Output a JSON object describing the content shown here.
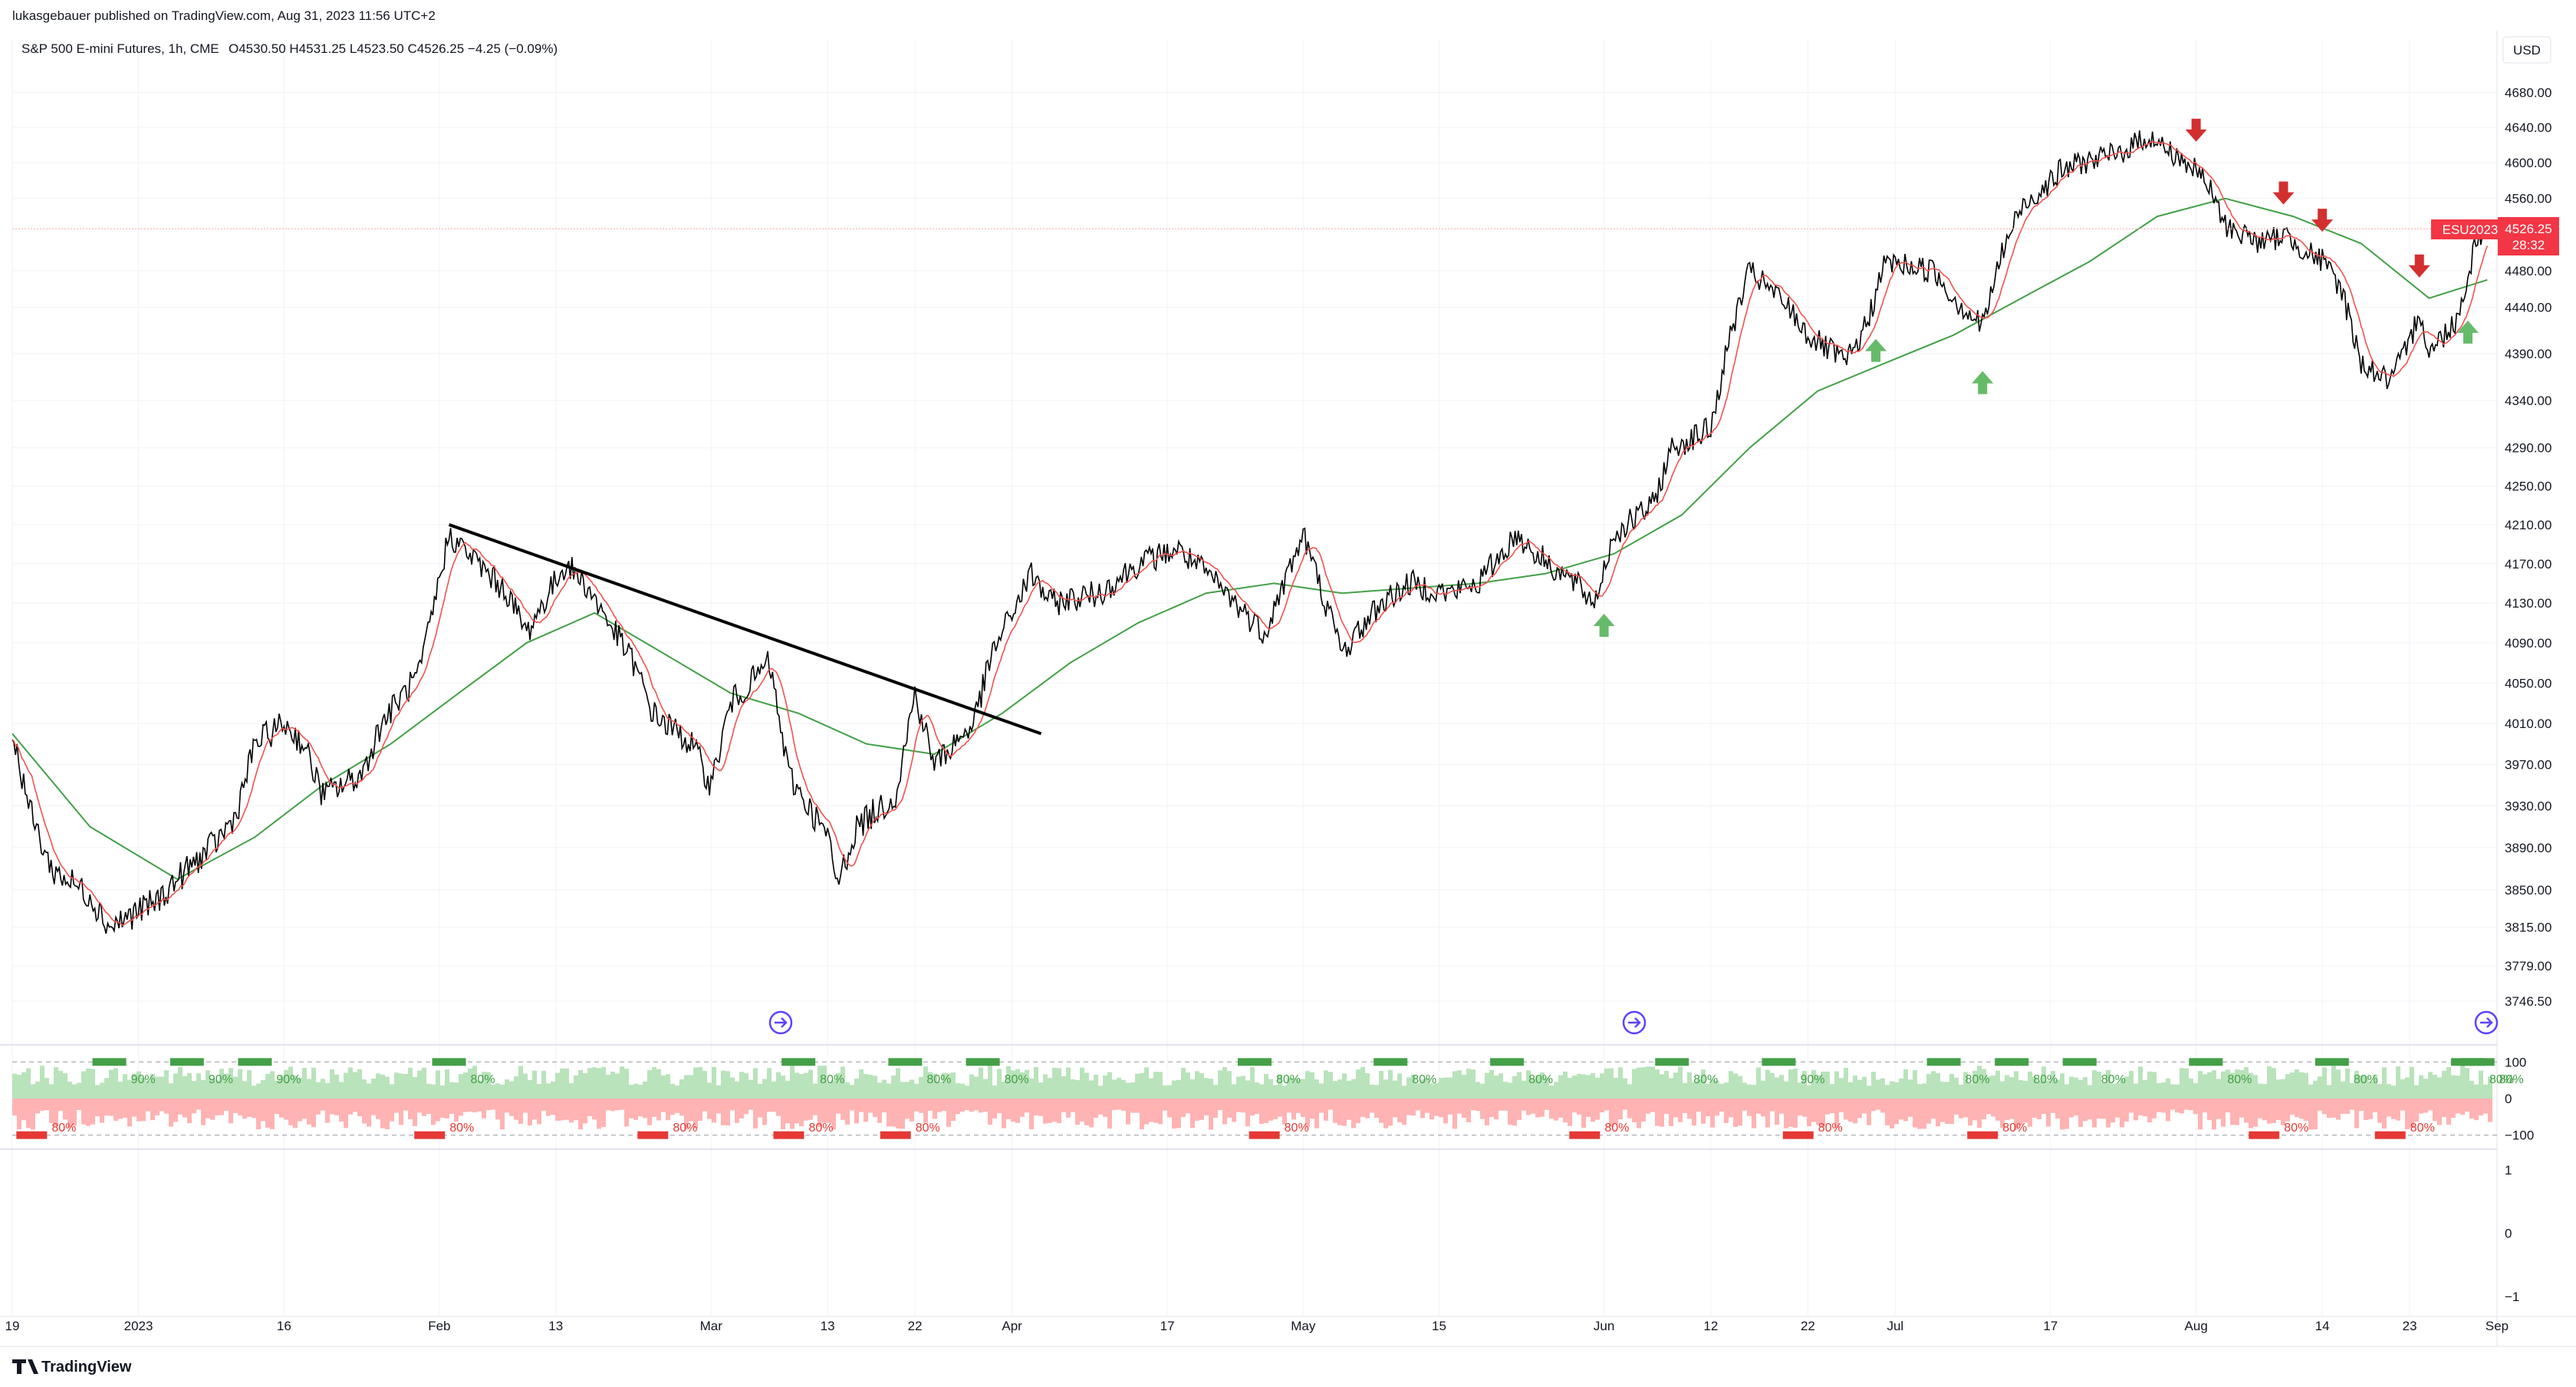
{
  "header": {
    "publisher": "lukasgebauer published on TradingView.com, Aug 31, 2023 11:56 UTC+2",
    "symbol": "S&P 500 E-mini Futures, 1h, CME",
    "ohlc": "O4530.50  H4531.25  L4523.50  C4526.25  −4.25 (−0.09%)"
  },
  "currency_button": "USD",
  "price_badge": {
    "ticker": "ESU2023",
    "price": "4526.25",
    "countdown": "28:32"
  },
  "footer_logo": "TradingView",
  "colors": {
    "price_line": "#000000",
    "fast_ma": "#ef5350",
    "slow_ma": "#43a047",
    "up_arrow": "#66bb6a",
    "down_arrow": "#d32f2f",
    "osc_positive": "#b9e3bb",
    "osc_negative": "#ffb3b3",
    "extreme_high": "#43a047",
    "extreme_low": "#e53935",
    "badge": "#f23645"
  },
  "icons": [
    "jump-to-realtime-icon",
    "tradingview-logo-icon"
  ],
  "chart_data": [
    {
      "type": "line",
      "series": [
        {
          "name": "ESU2023",
          "points": [
            [
              "2022-12-19",
              4000
            ],
            [
              "2022-12-21",
              3920
            ],
            [
              "2022-12-23",
              3870
            ],
            [
              "2022-12-27",
              3845
            ],
            [
              "2022-12-29",
              3815
            ],
            [
              "2023-01-03",
              3840
            ],
            [
              "2023-01-05",
              3860
            ],
            [
              "2023-01-09",
              3895
            ],
            [
              "2023-01-11",
              3920
            ],
            [
              "2023-01-13",
              3990
            ],
            [
              "2023-01-16",
              4010
            ],
            [
              "2023-01-18",
              3990
            ],
            [
              "2023-01-20",
              3940
            ],
            [
              "2023-01-24",
              3960
            ],
            [
              "2023-01-26",
              4010
            ],
            [
              "2023-01-30",
              4060
            ],
            [
              "2023-02-02",
              4200
            ],
            [
              "2023-02-06",
              4160
            ],
            [
              "2023-02-08",
              4140
            ],
            [
              "2023-02-10",
              4100
            ],
            [
              "2023-02-14",
              4170
            ],
            [
              "2023-02-16",
              4150
            ],
            [
              "2023-02-21",
              4070
            ],
            [
              "2023-02-23",
              4020
            ],
            [
              "2023-02-27",
              3990
            ],
            [
              "2023-03-01",
              3950
            ],
            [
              "2023-03-03",
              4030
            ],
            [
              "2023-03-07",
              4070
            ],
            [
              "2023-03-09",
              3960
            ],
            [
              "2023-03-13",
              3900
            ],
            [
              "2023-03-14",
              3855
            ],
            [
              "2023-03-16",
              3910
            ],
            [
              "2023-03-20",
              3940
            ],
            [
              "2023-03-22",
              4040
            ],
            [
              "2023-03-24",
              3970
            ],
            [
              "2023-03-28",
              4010
            ],
            [
              "2023-03-30",
              4080
            ],
            [
              "2023-04-03",
              4160
            ],
            [
              "2023-04-05",
              4130
            ],
            [
              "2023-04-10",
              4140
            ],
            [
              "2023-04-14",
              4170
            ],
            [
              "2023-04-18",
              4185
            ],
            [
              "2023-04-21",
              4160
            ],
            [
              "2023-04-25",
              4120
            ],
            [
              "2023-04-27",
              4100
            ],
            [
              "2023-05-01",
              4200
            ],
            [
              "2023-05-03",
              4140
            ],
            [
              "2023-05-05",
              4080
            ],
            [
              "2023-05-09",
              4130
            ],
            [
              "2023-05-12",
              4150
            ],
            [
              "2023-05-16",
              4140
            ],
            [
              "2023-05-19",
              4150
            ],
            [
              "2023-05-23",
              4200
            ],
            [
              "2023-05-25",
              4180
            ],
            [
              "2023-05-29",
              4150
            ],
            [
              "2023-05-31",
              4130
            ],
            [
              "2023-06-02",
              4200
            ],
            [
              "2023-06-06",
              4230
            ],
            [
              "2023-06-08",
              4290
            ],
            [
              "2023-06-12",
              4310
            ],
            [
              "2023-06-14",
              4410
            ],
            [
              "2023-06-16",
              4480
            ],
            [
              "2023-06-20",
              4440
            ],
            [
              "2023-06-22",
              4410
            ],
            [
              "2023-06-26",
              4380
            ],
            [
              "2023-06-28",
              4420
            ],
            [
              "2023-06-30",
              4490
            ],
            [
              "2023-07-05",
              4480
            ],
            [
              "2023-07-07",
              4450
            ],
            [
              "2023-07-10",
              4420
            ],
            [
              "2023-07-12",
              4500
            ],
            [
              "2023-07-14",
              4550
            ],
            [
              "2023-07-18",
              4590
            ],
            [
              "2023-07-20",
              4600
            ],
            [
              "2023-07-24",
              4610
            ],
            [
              "2023-07-27",
              4630
            ],
            [
              "2023-07-31",
              4600
            ],
            [
              "2023-08-02",
              4580
            ],
            [
              "2023-08-04",
              4530
            ],
            [
              "2023-08-08",
              4510
            ],
            [
              "2023-08-10",
              4520
            ],
            [
              "2023-08-14",
              4490
            ],
            [
              "2023-08-16",
              4460
            ],
            [
              "2023-08-18",
              4380
            ],
            [
              "2023-08-21",
              4360
            ],
            [
              "2023-08-23",
              4400
            ],
            [
              "2023-08-24",
              4440
            ],
            [
              "2023-08-25",
              4390
            ],
            [
              "2023-08-28",
              4430
            ],
            [
              "2023-08-30",
              4520
            ],
            [
              "2023-08-31",
              4526.25
            ]
          ]
        },
        {
          "name": "",
          "points": [
            [
              "2022-12-19",
              4000
            ],
            [
              "2022-12-27",
              3910
            ],
            [
              "2023-01-05",
              3860
            ],
            [
              "2023-01-13",
              3900
            ],
            [
              "2023-01-20",
              3950
            ],
            [
              "2023-01-27",
              3990
            ],
            [
              "2023-02-03",
              4040
            ],
            [
              "2023-02-10",
              4090
            ],
            [
              "2023-02-17",
              4120
            ],
            [
              "2023-02-24",
              4080
            ],
            [
              "2023-03-03",
              4040
            ],
            [
              "2023-03-10",
              4020
            ],
            [
              "2023-03-17",
              3990
            ],
            [
              "2023-03-24",
              3980
            ],
            [
              "2023-03-31",
              4020
            ],
            [
              "2023-04-07",
              4070
            ],
            [
              "2023-04-14",
              4110
            ],
            [
              "2023-04-21",
              4140
            ],
            [
              "2023-04-28",
              4150
            ],
            [
              "2023-05-05",
              4140
            ],
            [
              "2023-05-12",
              4145
            ],
            [
              "2023-05-19",
              4150
            ],
            [
              "2023-05-26",
              4160
            ],
            [
              "2023-06-02",
              4180
            ],
            [
              "2023-06-09",
              4220
            ],
            [
              "2023-06-16",
              4290
            ],
            [
              "2023-06-23",
              4350
            ],
            [
              "2023-06-30",
              4380
            ],
            [
              "2023-07-07",
              4410
            ],
            [
              "2023-07-14",
              4450
            ],
            [
              "2023-07-21",
              4490
            ],
            [
              "2023-07-28",
              4540
            ],
            [
              "2023-08-04",
              4560
            ],
            [
              "2023-08-11",
              4540
            ],
            [
              "2023-08-18",
              4510
            ],
            [
              "2023-08-25",
              4450
            ],
            [
              "2023-08-31",
              4470
            ]
          ]
        }
      ],
      "trendline": [
        [
          "2023-02-02",
          4210
        ],
        [
          "2023-04-04",
          4000
        ]
      ],
      "up_arrows": [
        "2023-06-01",
        "2023-06-29",
        "2023-07-10",
        "2023-08-29"
      ],
      "down_arrows": [
        "2023-08-01",
        "2023-08-10",
        "2023-08-14",
        "2023-08-24"
      ],
      "last_price": 4526.25,
      "ylim": [
        3715,
        4705
      ],
      "y_ticks": [
        "4680.00",
        "4640.00",
        "4600.00",
        "4560.00",
        "4480.00",
        "4440.00",
        "4390.00",
        "4340.00",
        "4290.00",
        "4250.00",
        "4210.00",
        "4170.00",
        "4130.00",
        "4090.00",
        "4050.00",
        "4010.00",
        "3970.00",
        "3930.00",
        "3890.00",
        "3850.00",
        "3815.00",
        "3779.00",
        "3746.50"
      ],
      "x_ticks": [
        "19",
        "2023",
        "16",
        "Feb",
        "13",
        "Mar",
        "13",
        "22",
        "Apr",
        "17",
        "May",
        "15",
        "Jun",
        "12",
        "22",
        "Jul",
        "17",
        "Aug",
        "14",
        "23",
        "Sep"
      ],
      "xlim": [
        "2022-12-19",
        "2023-09-01"
      ],
      "log_scale": true,
      "grid": true
    },
    {
      "type": "bar",
      "ylim": [
        -130,
        130
      ],
      "y_ticks": [
        "100",
        "0",
        "−100"
      ],
      "extreme_labels_high": [
        "90%",
        "90%",
        "90%",
        "80%",
        "80%",
        "80%",
        "80%",
        "80%",
        "80%",
        "80%",
        "80%",
        "90%",
        "80%",
        "80%",
        "80%",
        "80%",
        "80%",
        "80%",
        "80%"
      ],
      "extreme_labels_low": [
        "80%",
        "80%",
        "80%",
        "80%",
        "80%",
        "80%",
        "80%",
        "80%",
        "80%",
        "80%",
        "80%"
      ],
      "grid": false
    },
    {
      "type": "line",
      "ylim": [
        -1.3,
        1.3
      ],
      "y_ticks": [
        "1",
        "0",
        "−1"
      ],
      "grid": false
    }
  ]
}
